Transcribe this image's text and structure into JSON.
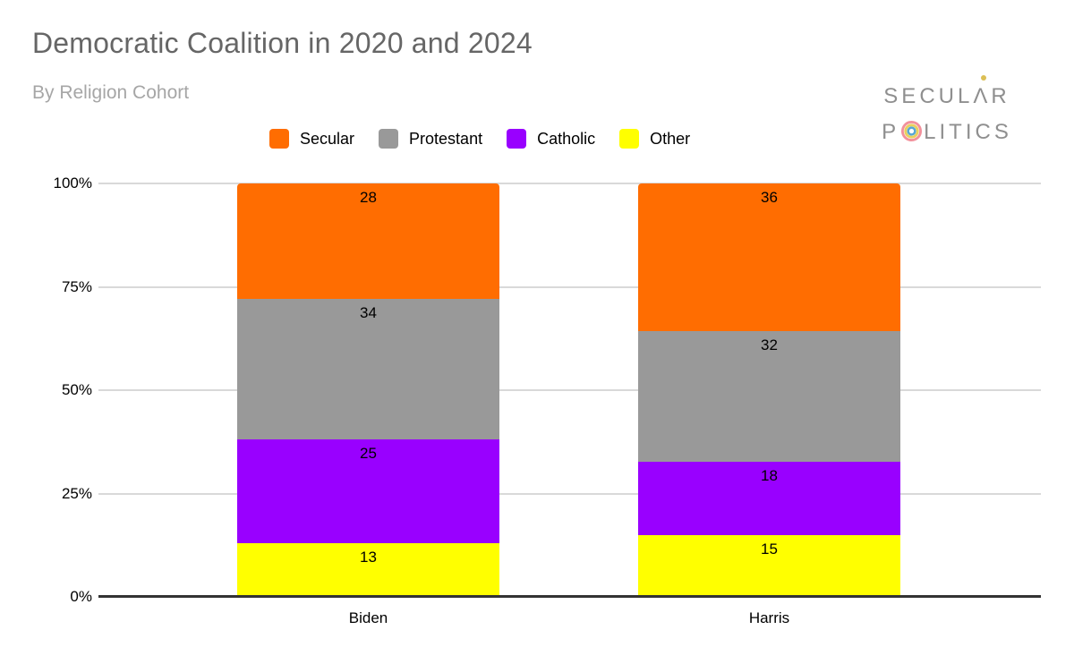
{
  "brand": {
    "line1_pre": "SECUL",
    "line1_a": "Λ",
    "line1_post": "R",
    "line2_pre": "P",
    "line2_post": "LITICS",
    "dot_color": "#dcbf55",
    "o_ring_outer": "#f2919c",
    "o_ring_middle": "#e9cf5e",
    "o_ring_inner": "#57a7d4"
  },
  "chart_data": {
    "type": "bar",
    "stacked": true,
    "percent_scale": true,
    "title": "Democratic Coalition in 2020 and 2024",
    "subtitle": "By Religion Cohort",
    "categories": [
      "Biden",
      "Harris"
    ],
    "series": [
      {
        "name": "Secular",
        "color": "#ff6d01",
        "values": [
          28,
          36
        ]
      },
      {
        "name": "Protestant",
        "color": "#999999",
        "values": [
          34,
          32
        ]
      },
      {
        "name": "Catholic",
        "color": "#9900ff",
        "values": [
          25,
          18
        ]
      },
      {
        "name": "Other",
        "color": "#ffff00",
        "values": [
          13,
          15
        ]
      }
    ],
    "xlabel": "",
    "ylabel": "",
    "ylim": [
      0,
      100
    ],
    "y_ticks": [
      {
        "label": "0%",
        "value": 0
      },
      {
        "label": "25%",
        "value": 25
      },
      {
        "label": "50%",
        "value": 50
      },
      {
        "label": "75%",
        "value": 75
      },
      {
        "label": "100%",
        "value": 100
      }
    ],
    "grid": true,
    "legend_position": "top",
    "gridline_color": "#d9d9d9",
    "baseline_color": "#333333",
    "title_color": "#666666",
    "subtitle_color": "#a6a6a6"
  }
}
